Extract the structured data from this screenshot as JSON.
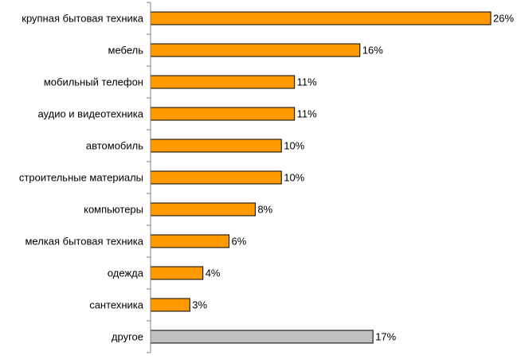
{
  "chart_data": {
    "type": "bar",
    "orientation": "horizontal",
    "categories": [
      "крупная бытовая техника",
      "мебель",
      "мобильный телефон",
      "аудио и видеотехника",
      "автомобиль",
      "строительные материалы",
      "компьютеры",
      "мелкая бытовая техника",
      "одежда",
      "сантехника",
      "другое"
    ],
    "values": [
      26,
      16,
      11,
      11,
      10,
      10,
      8,
      6,
      4,
      3,
      17
    ],
    "value_labels": [
      "26%",
      "16%",
      "11%",
      "11%",
      "10%",
      "10%",
      "8%",
      "6%",
      "4%",
      "3%",
      "17%"
    ],
    "unit": "%",
    "xlim": [
      0,
      26
    ],
    "grid": false,
    "legend": "none",
    "colors": {
      "bar": "#FF9900",
      "bar_other": "#C0C0C0",
      "outline": "#000000",
      "axis": "#808080"
    }
  }
}
